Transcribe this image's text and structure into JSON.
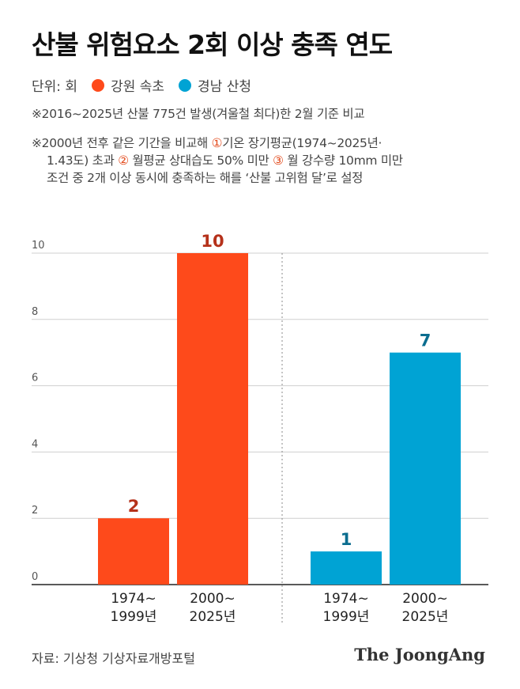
{
  "title": "산불 위험요소 2회 이상 충족 연도",
  "legend": {
    "unit": "단위: 회",
    "items": [
      {
        "label": "강원 속초",
        "color": "#fe4a1b"
      },
      {
        "label": "경남 산청",
        "color": "#00a3d4"
      }
    ]
  },
  "notes": {
    "note1": "※2016~2025년 산불 775건 발생(겨울철 최다)한 2월 기준 비교",
    "note2_a": "※2000년 전후 같은 기간을 비교해 ",
    "note2_c1": "①",
    "note2_b": "기온 장기평균(1974~2025년·",
    "note2_c": "1.43도) 초과 ",
    "note2_c2": "②",
    "note2_d": " 월평균 상대습도 50% 미만 ",
    "note2_c3": "③",
    "note2_e": " 월 강수량 10mm 미만",
    "note2_f": "조건 중 2개 이상 동시에 충족하는 해를 ‘산불 고위험 달’로 설정"
  },
  "chart_data": {
    "type": "bar",
    "ylim": [
      0,
      10
    ],
    "yticks": [
      0,
      2,
      4,
      6,
      8,
      10
    ],
    "grid": true,
    "groups": [
      {
        "name": "강원 속초",
        "color": "#fe4a1b",
        "label_color": "#b5311a",
        "bars": [
          {
            "category_line1": "1974~",
            "category_line2": "1999년",
            "value": 2
          },
          {
            "category_line1": "2000~",
            "category_line2": "2025년",
            "value": 10
          }
        ]
      },
      {
        "name": "경남 산청",
        "color": "#00a3d4",
        "label_color": "#0b6d8f",
        "bars": [
          {
            "category_line1": "1974~",
            "category_line2": "1999년",
            "value": 1
          },
          {
            "category_line1": "2000~",
            "category_line2": "2025년",
            "value": 7
          }
        ]
      }
    ]
  },
  "source": "자료: 기상청 기상자료개방포털",
  "brand": "The JoongAng"
}
